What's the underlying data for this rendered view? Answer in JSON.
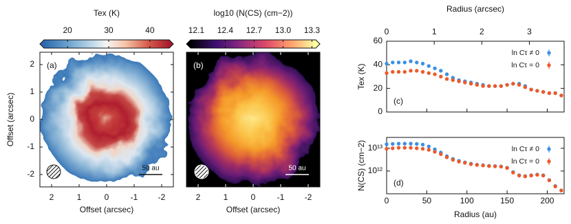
{
  "chart_data": [
    {
      "type": "heatmap",
      "panel_label": "(a)",
      "colorbar_label": "Tex   (K)",
      "clim": [
        14.3,
        44.7
      ],
      "colorbar_ticks": [
        20,
        30,
        40
      ],
      "xlabel": "Offset   (arcsec)",
      "ylabel": "Offset   (arcsec)",
      "xlim": [
        2.425,
        -2.425
      ],
      "ylim": [
        -2.45,
        2.45
      ],
      "xticks": [
        2,
        1,
        0,
        -1,
        -2
      ],
      "yticks": [
        -2,
        -1,
        0,
        1,
        2
      ],
      "scalebar_label": "50 au"
    },
    {
      "type": "heatmap",
      "panel_label": "(b)",
      "colorbar_label": "log10 (N(CS)  (cm−2))",
      "clim": [
        12.04,
        13.34
      ],
      "colorbar_ticks": [
        12.1,
        12.4,
        12.7,
        {
          "value": 13,
          "label": "13.0"
        },
        13.3
      ],
      "xlabel": "Offset   (arcsec)",
      "xlim": [
        2.425,
        -2.425
      ],
      "xticks": [
        2,
        1,
        0,
        -1,
        -2
      ],
      "scalebar_label": "50 au"
    },
    {
      "type": "scatter",
      "panel_label": "(c)",
      "ylabel": "Tex   (K)",
      "x2label": "Radius   (arcsec)",
      "x2lim": [
        0,
        3.73
      ],
      "x2ticks": [
        0,
        1,
        2,
        3
      ],
      "xlim": [
        0,
        221
      ],
      "ylim": [
        0,
        60
      ],
      "yticks": [
        0,
        20,
        40,
        60
      ],
      "x": [
        0,
        7.5,
        15,
        22.5,
        30,
        37.5,
        45,
        52.5,
        60,
        67.5,
        75,
        82.5,
        90,
        97.5,
        105,
        112.5,
        120,
        127.5,
        135,
        142.5,
        150,
        157.5,
        165,
        172.5,
        180,
        187.5,
        195,
        202.5,
        210,
        217.5
      ],
      "series": [
        {
          "name": "ln Cτ ≠ 0",
          "color": "#3d8fe0",
          "values": [
            41,
            42,
            42,
            42,
            43,
            42,
            41,
            39,
            37,
            35,
            32,
            29,
            27,
            26,
            25,
            24,
            23,
            22,
            22,
            22,
            23,
            24,
            24,
            22,
            19,
            18,
            17,
            16,
            16,
            14
          ]
        },
        {
          "name": "ln Cτ = 0",
          "color": "#ec5a2a",
          "values": [
            33,
            34,
            34,
            34,
            35,
            35,
            34,
            33,
            32,
            30,
            28,
            27,
            26,
            25,
            24,
            23,
            22,
            22,
            22,
            22,
            23,
            24,
            23,
            21,
            19,
            18,
            17,
            16,
            16,
            14
          ]
        }
      ]
    },
    {
      "type": "scatter",
      "panel_label": "(d)",
      "ylabel": "N(CS)  (cm−2)",
      "xlabel": "Radius    (au)",
      "log_y": true,
      "xlim": [
        0,
        221
      ],
      "xticks": [
        0,
        50,
        100,
        150,
        200
      ],
      "ylim": [
        100000000000.0,
        30000000000000.0
      ],
      "yticks": [
        {
          "value": 1000000000000.0,
          "label": "10¹²"
        },
        {
          "value": 10000000000000.0,
          "label": "10¹³"
        }
      ],
      "x": [
        0,
        7.5,
        15,
        22.5,
        30,
        37.5,
        45,
        52.5,
        60,
        67.5,
        75,
        82.5,
        90,
        97.5,
        105,
        112.5,
        120,
        127.5,
        135,
        142.5,
        150,
        157.5,
        165,
        172.5,
        180,
        187.5,
        195,
        202.5,
        210,
        217.5
      ],
      "series": [
        {
          "name": "ln Cτ ≠ 0",
          "color": "#3d8fe0",
          "values": [
            15000000000000.0,
            15500000000000.0,
            16000000000000.0,
            16000000000000.0,
            16000000000000.0,
            15500000000000.0,
            14500000000000.0,
            12000000000000.0,
            9000000000000.0,
            6500000000000.0,
            4500000000000.0,
            3400000000000.0,
            2800000000000.0,
            2400000000000.0,
            2100000000000.0,
            1900000000000.0,
            1800000000000.0,
            1700000000000.0,
            1650000000000.0,
            1600000000000.0,
            1400000000000.0,
            900000000000.0,
            650000000000.0,
            600000000000.0,
            650000000000.0,
            700000000000.0,
            650000000000.0,
            400000000000.0,
            220000000000.0,
            140000000000.0
          ]
        },
        {
          "name": "ln Cτ = 0",
          "color": "#ec5a2a",
          "values": [
            9500000000000.0,
            10000000000000.0,
            10500000000000.0,
            10500000000000.0,
            10500000000000.0,
            10000000000000.0,
            9500000000000.0,
            8500000000000.0,
            7000000000000.0,
            5500000000000.0,
            4000000000000.0,
            3100000000000.0,
            2600000000000.0,
            2300000000000.0,
            2000000000000.0,
            1850000000000.0,
            1750000000000.0,
            1650000000000.0,
            1600000000000.0,
            1550000000000.0,
            1350000000000.0,
            850000000000.0,
            630000000000.0,
            580000000000.0,
            630000000000.0,
            680000000000.0,
            630000000000.0,
            390000000000.0,
            210000000000.0,
            140000000000.0
          ]
        }
      ]
    }
  ]
}
